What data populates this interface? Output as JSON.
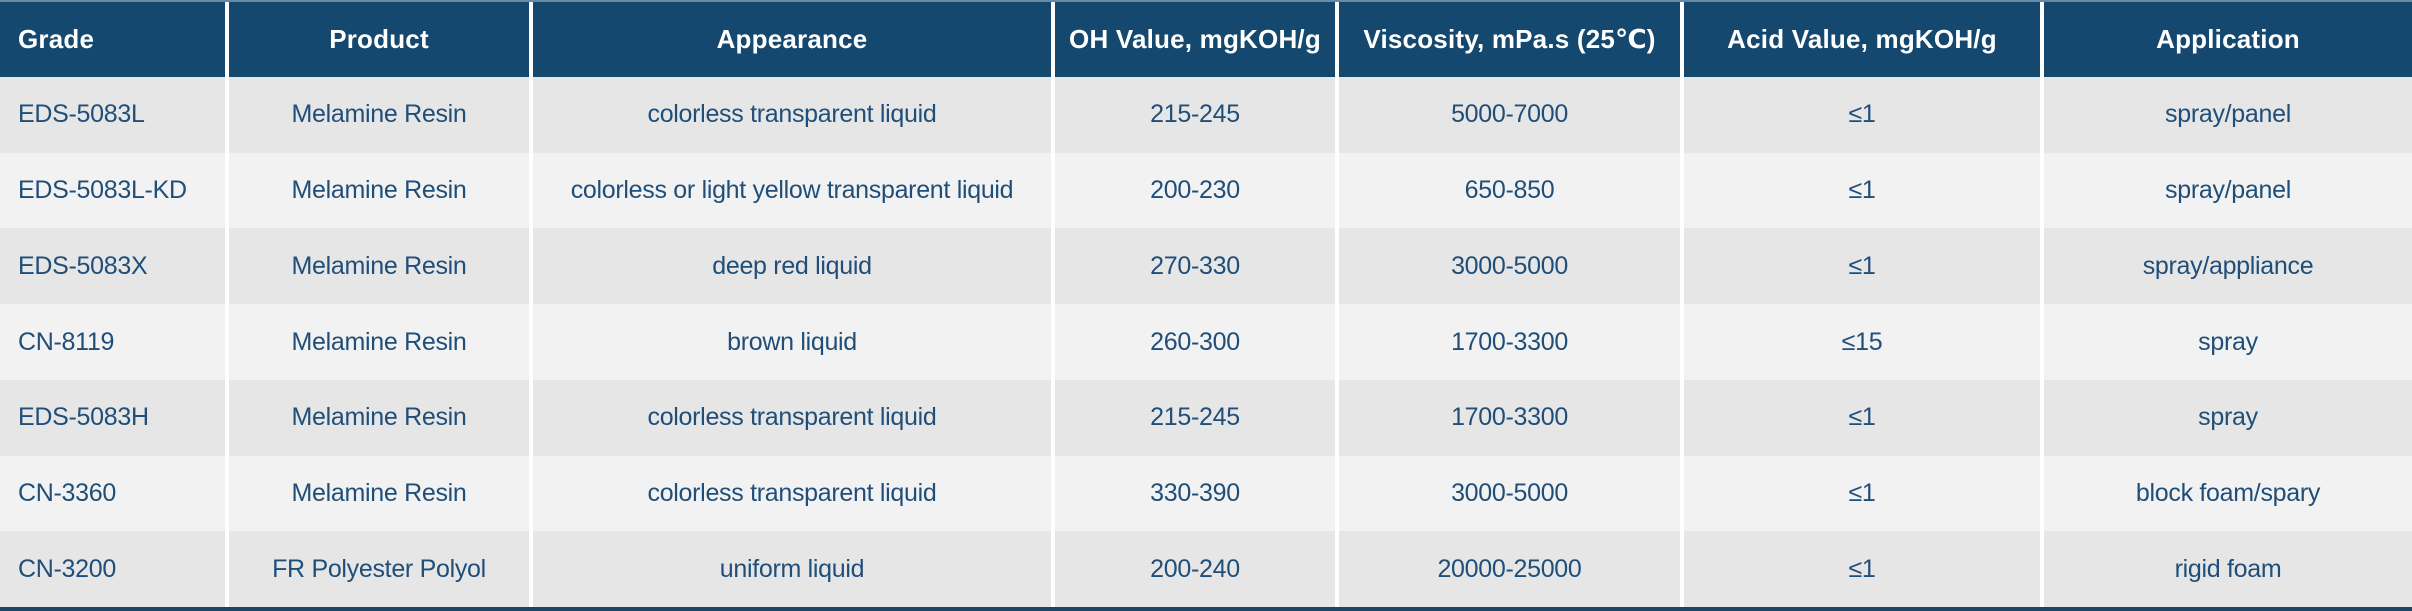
{
  "table": {
    "columns": [
      {
        "key": "grade",
        "label": "Grade"
      },
      {
        "key": "product",
        "label": "Product"
      },
      {
        "key": "appearance",
        "label": "Appearance"
      },
      {
        "key": "oh_value",
        "label": "OH Value, mgKOH/g"
      },
      {
        "key": "viscosity",
        "label": "Viscosity, mPa.s (25℃)"
      },
      {
        "key": "acid_value",
        "label": "Acid Value, mgKOH/g"
      },
      {
        "key": "application",
        "label": "Application"
      }
    ],
    "rows": [
      [
        "EDS-5083L",
        "Melamine Resin",
        "colorless transparent liquid",
        "215-245",
        "5000-7000",
        "≤1",
        "spray/panel"
      ],
      [
        "EDS-5083L-KD",
        "Melamine Resin",
        "colorless or light yellow transparent liquid",
        "200-230",
        "650-850",
        "≤1",
        "spray/panel"
      ],
      [
        "EDS-5083X",
        "Melamine Resin",
        "deep red liquid",
        "270-330",
        "3000-5000",
        "≤1",
        "spray/appliance"
      ],
      [
        "CN-8119",
        "Melamine Resin",
        "brown liquid",
        "260-300",
        "1700-3300",
        "≤15",
        "spray"
      ],
      [
        "EDS-5083H",
        "Melamine Resin",
        "colorless transparent liquid",
        "215-245",
        "1700-3300",
        "≤1",
        "spray"
      ],
      [
        "CN-3360",
        "Melamine Resin",
        "colorless transparent liquid",
        "330-390",
        "3000-5000",
        "≤1",
        "block foam/spary"
      ],
      [
        "CN-3200",
        "FR Polyester Polyol",
        "uniform liquid",
        "200-240",
        "20000-25000",
        "≤1",
        "rigid foam"
      ]
    ]
  },
  "colors": {
    "header_bg": "#15486e",
    "header_text": "#ffffff",
    "body_text": "#1f4e79",
    "row_odd_bg": "#e6e6e6",
    "row_even_bg": "#f2f2f2",
    "column_divider": "#ffffff",
    "top_border": "#6b89a0",
    "bottom_border": "#1c4464"
  }
}
